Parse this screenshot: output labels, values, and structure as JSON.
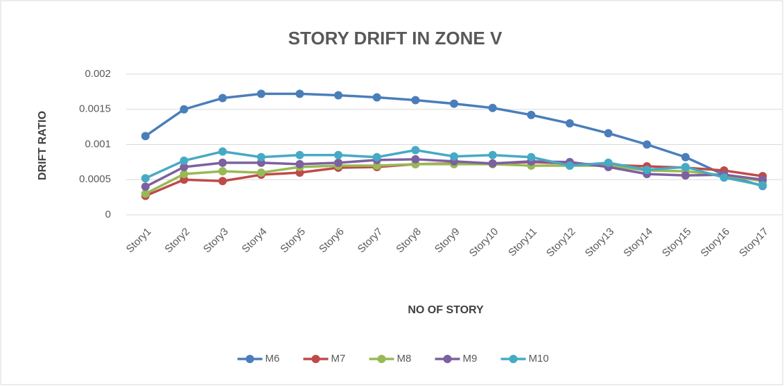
{
  "chart_data": {
    "type": "line",
    "title": "STORY DRIFT IN ZONE V",
    "xlabel": "NO OF STORY",
    "ylabel": "DRIFT RATIO",
    "categories": [
      "Story1",
      "Story2",
      "Story3",
      "Story4",
      "Story5",
      "Story6",
      "Story7",
      "Story8",
      "Story9",
      "Story10",
      "Story11",
      "Story12",
      "Story13",
      "Story14",
      "Story15",
      "Story16",
      "Story17"
    ],
    "series": [
      {
        "name": "M6",
        "color": "#4a7ebb",
        "values": [
          0.00112,
          0.0015,
          0.00166,
          0.00172,
          0.00172,
          0.0017,
          0.00167,
          0.00163,
          0.00158,
          0.00152,
          0.00142,
          0.0013,
          0.00116,
          0.001,
          0.00082,
          0.00057,
          0.00041
        ]
      },
      {
        "name": "M7",
        "color": "#be4b48",
        "values": [
          0.00027,
          0.0005,
          0.00048,
          0.00057,
          0.0006,
          0.00067,
          0.00068,
          0.00072,
          0.00073,
          0.00073,
          0.00075,
          0.00073,
          0.00071,
          0.00069,
          0.00067,
          0.00063,
          0.00055
        ]
      },
      {
        "name": "M8",
        "color": "#98b954",
        "values": [
          0.0003,
          0.00058,
          0.00062,
          0.0006,
          0.00068,
          0.0007,
          0.0007,
          0.00072,
          0.00072,
          0.00072,
          0.0007,
          0.0007,
          0.0007,
          0.00063,
          0.00062,
          0.00056,
          0.00048
        ]
      },
      {
        "name": "M9",
        "color": "#7d60a0",
        "values": [
          0.0004,
          0.00068,
          0.00074,
          0.00074,
          0.00072,
          0.00074,
          0.00078,
          0.00079,
          0.00076,
          0.00073,
          0.00076,
          0.00075,
          0.00068,
          0.00058,
          0.00056,
          0.00057,
          0.0005
        ]
      },
      {
        "name": "M10",
        "color": "#46aac5",
        "values": [
          0.00052,
          0.00077,
          0.0009,
          0.00082,
          0.00085,
          0.00085,
          0.00082,
          0.00092,
          0.00083,
          0.00085,
          0.00082,
          0.0007,
          0.00074,
          0.00064,
          0.00068,
          0.00053,
          0.00042
        ]
      }
    ],
    "ylim": [
      0,
      0.002
    ],
    "yticks": [
      0,
      0.0005,
      0.001,
      0.0015,
      0.002
    ],
    "grid": true,
    "legend": "bottom"
  }
}
